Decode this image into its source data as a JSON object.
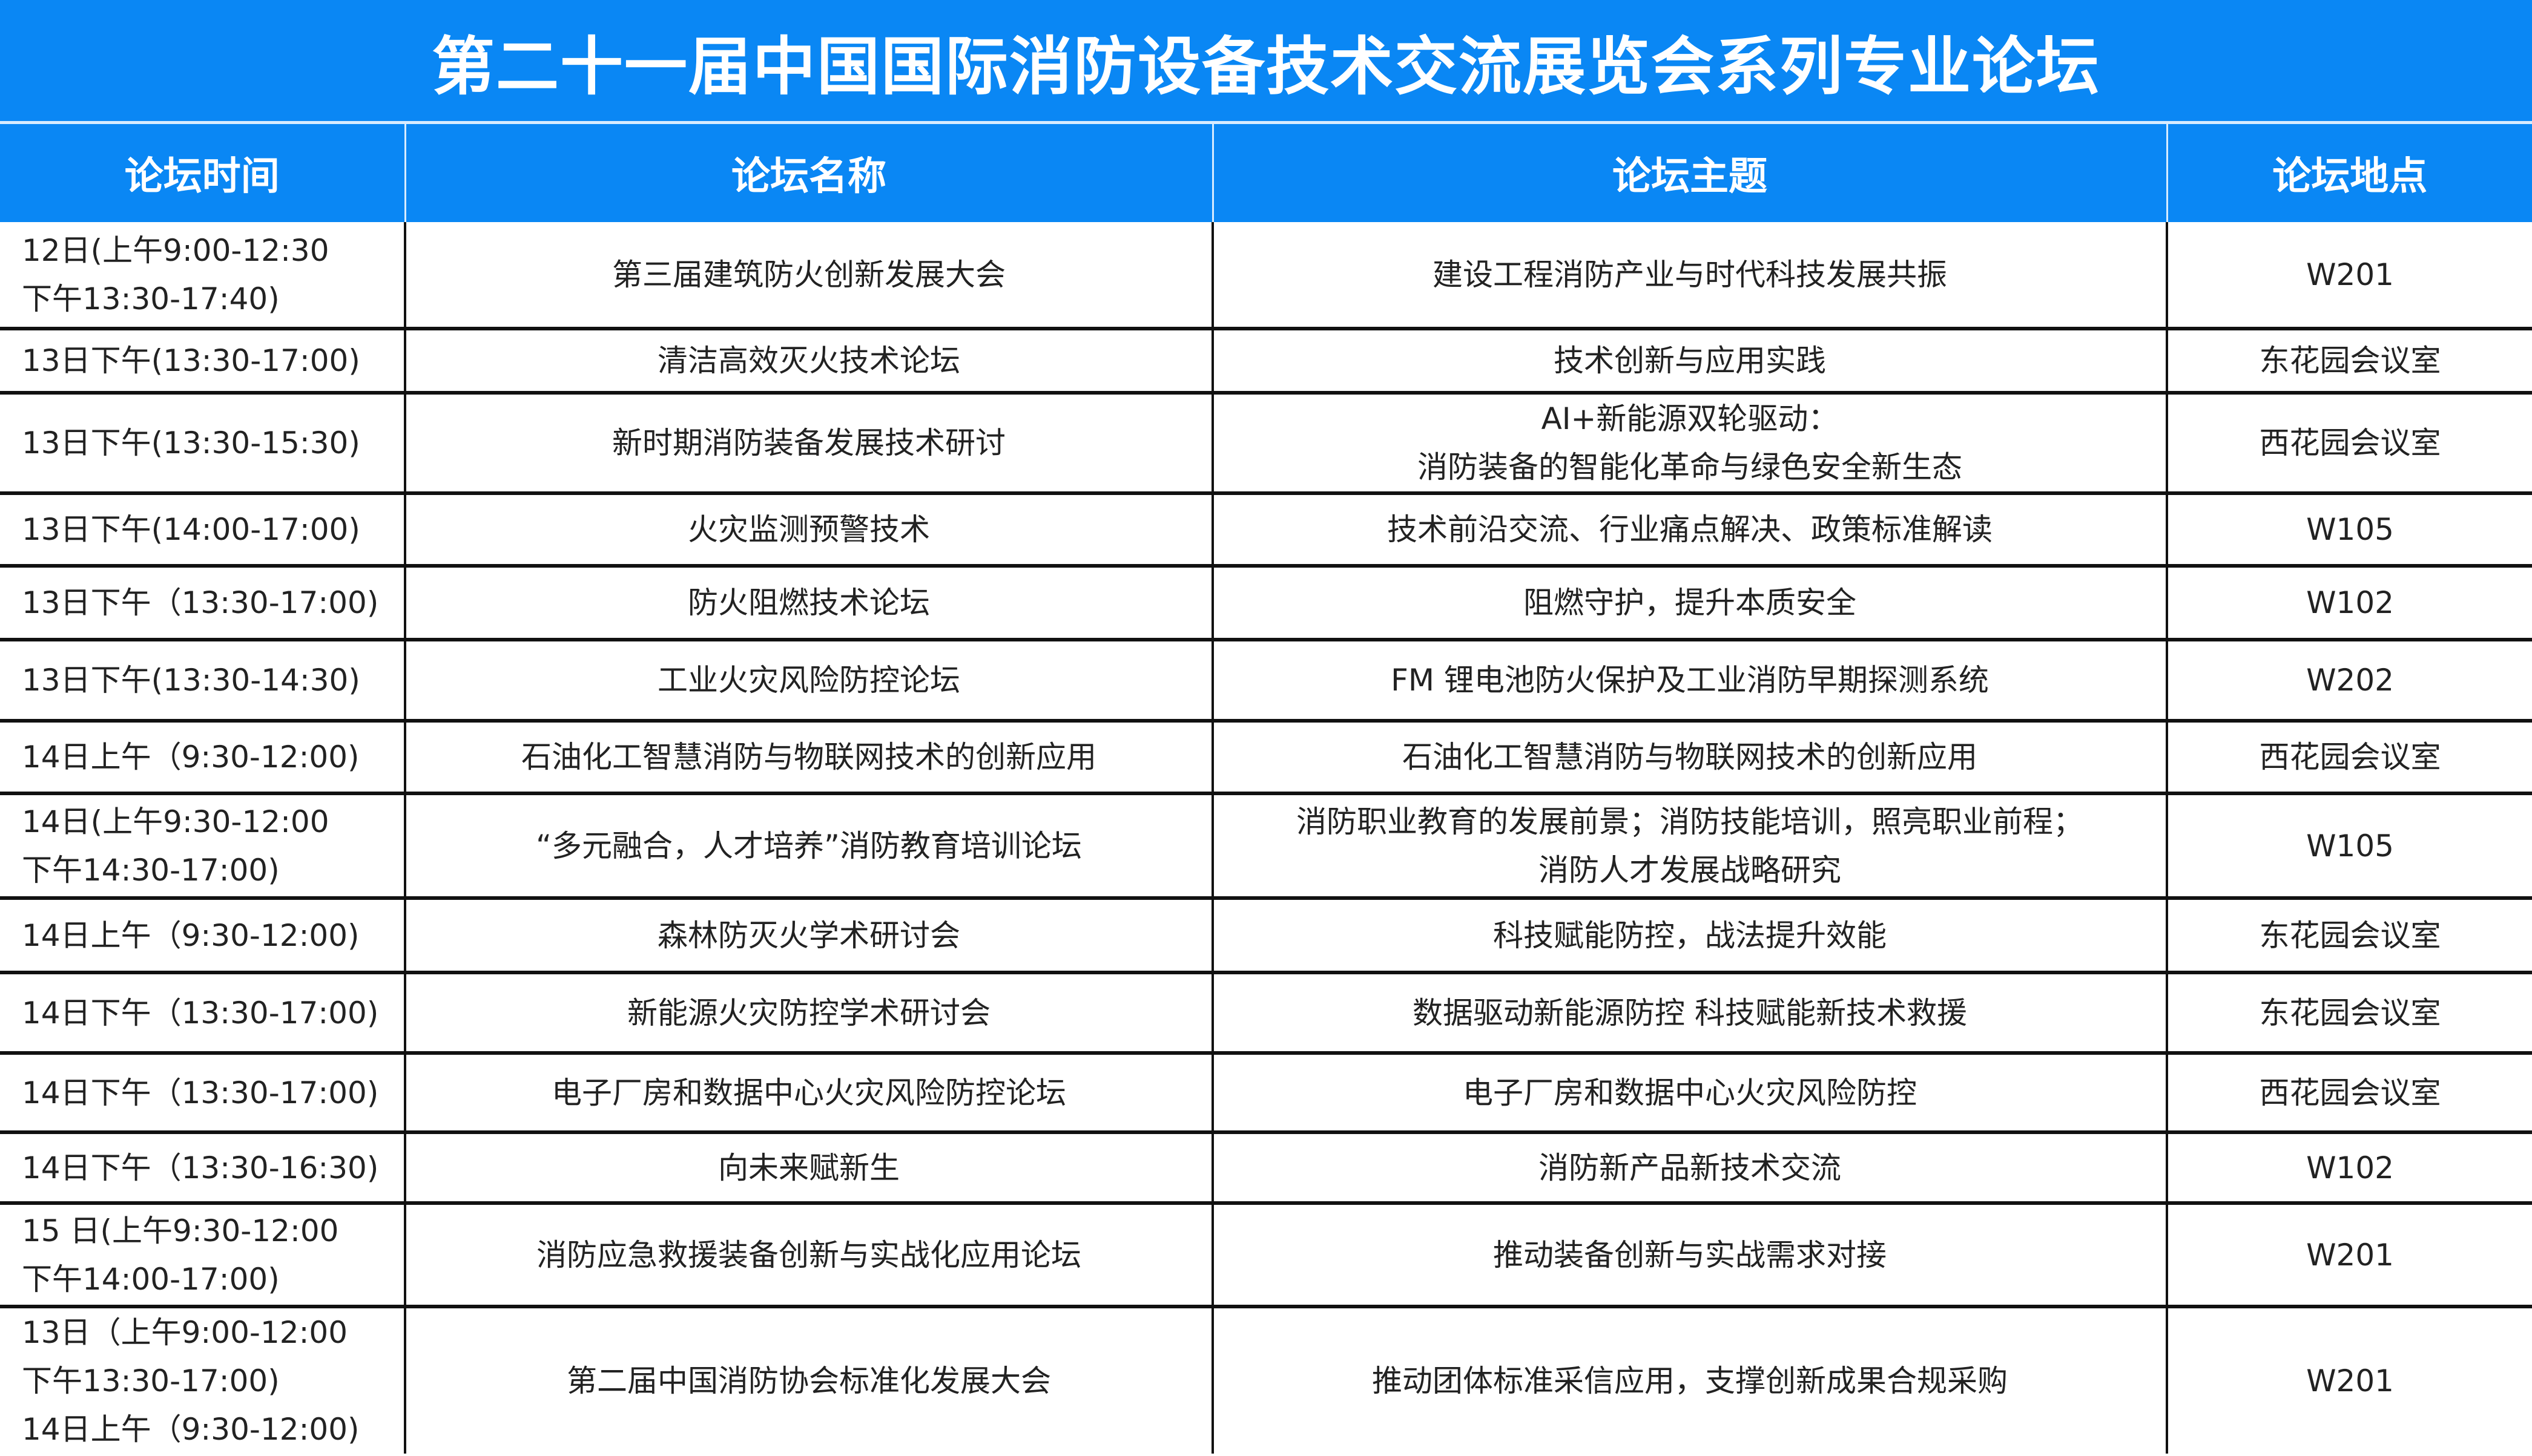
{
  "title": "第二十一届中国国际消防设备技术交流展览会系列专业论坛",
  "colors": {
    "header_bg": "#0a87f4",
    "header_text": "#ffffff",
    "grid": "#111111"
  },
  "columns": [
    "论坛时间",
    "论坛名称",
    "论坛主题",
    "论坛地点"
  ],
  "rows": [
    {
      "time": [
        "12日(上午9:00-12:30",
        "下午13:30-17:40)"
      ],
      "name": [
        "第三届建筑防火创新发展大会"
      ],
      "theme": [
        "建设工程消防产业与时代科技发展共振"
      ],
      "venue": [
        "W201"
      ]
    },
    {
      "time": [
        "13日下午(13:30-17:00)"
      ],
      "name": [
        "清洁高效灭火技术论坛"
      ],
      "theme": [
        "技术创新与应用实践"
      ],
      "venue": [
        "东花园会议室"
      ]
    },
    {
      "time": [
        "13日下午(13:30-15:30)"
      ],
      "name": [
        "新时期消防装备发展技术研讨"
      ],
      "theme": [
        "AI+新能源双轮驱动：",
        "消防装备的智能化革命与绿色安全新生态"
      ],
      "venue": [
        "西花园会议室"
      ]
    },
    {
      "time": [
        "13日下午(14:00-17:00)"
      ],
      "name": [
        "火灾监测预警技术"
      ],
      "theme": [
        "技术前沿交流、行业痛点解决、政策标准解读"
      ],
      "venue": [
        "W105"
      ]
    },
    {
      "time": [
        "13日下午（13:30-17:00)"
      ],
      "name": [
        "防火阻燃技术论坛"
      ],
      "theme": [
        "阻燃守护，提升本质安全"
      ],
      "venue": [
        "W102"
      ]
    },
    {
      "time": [
        "13日下午(13:30-14:30)"
      ],
      "name": [
        "工业火灾风险防控论坛"
      ],
      "theme": [
        "FM 锂电池防火保护及工业消防早期探测系统"
      ],
      "venue": [
        "W202"
      ]
    },
    {
      "time": [
        "14日上午（9:30-12:00)"
      ],
      "name": [
        "石油化工智慧消防与物联网技术的创新应用"
      ],
      "theme": [
        "石油化工智慧消防与物联网技术的创新应用"
      ],
      "venue": [
        "西花园会议室"
      ]
    },
    {
      "time": [
        "14日(上午9:30-12:00",
        "下午14:30-17:00)"
      ],
      "name": [
        "“多元融合，人才培养”消防教育培训论坛"
      ],
      "theme": [
        "消防职业教育的发展前景；消防技能培训，照亮职业前程；",
        "消防人才发展战略研究"
      ],
      "venue": [
        "W105"
      ]
    },
    {
      "time": [
        "14日上午（9:30-12:00)"
      ],
      "name": [
        "森林防灭火学术研讨会"
      ],
      "theme": [
        "科技赋能防控，战法提升效能"
      ],
      "venue": [
        "东花园会议室"
      ]
    },
    {
      "time": [
        "14日下午（13:30-17:00)"
      ],
      "name": [
        "新能源火灾防控学术研讨会"
      ],
      "theme": [
        "数据驱动新能源防控 科技赋能新技术救援"
      ],
      "venue": [
        "东花园会议室"
      ]
    },
    {
      "time": [
        "14日下午（13:30-17:00)"
      ],
      "name": [
        "电子厂房和数据中心火灾风险防控论坛"
      ],
      "theme": [
        "电子厂房和数据中心火灾风险防控"
      ],
      "venue": [
        "西花园会议室"
      ]
    },
    {
      "time": [
        "14日下午（13:30-16:30)"
      ],
      "name": [
        "向未来赋新生"
      ],
      "theme": [
        "消防新产品新技术交流"
      ],
      "venue": [
        "W102"
      ]
    },
    {
      "time": [
        "15 日(上午9:30-12:00",
        "下午14:00-17:00)"
      ],
      "name": [
        "消防应急救援装备创新与实战化应用论坛"
      ],
      "theme": [
        "推动装备创新与实战需求对接"
      ],
      "venue": [
        "W201"
      ]
    },
    {
      "time": [
        "13日（上午9:00-12:00",
        "下午13:30-17:00)",
        "14日上午（9:30-12:00)"
      ],
      "name": [
        "第二届中国消防协会标准化发展大会"
      ],
      "theme": [
        "推动团体标准采信应用，支撑创新成果合规采购"
      ],
      "venue": [
        "W201"
      ]
    }
  ]
}
